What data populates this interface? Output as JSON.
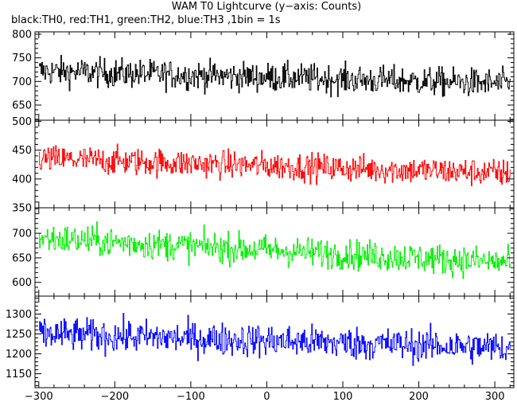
{
  "title": "WAM T0 Lightcurve (y−axis: Counts)",
  "subtitle": "black:TH0, red:TH1, green:TH2, blue:TH3 ,1bin = 1s",
  "chart_data": {
    "type": "line",
    "title": "WAM T0 Lightcurve (y−axis: Counts)",
    "subtitle": "black:TH0, red:TH1, green:TH2, blue:TH3 ,1bin = 1s",
    "ylabel": "Counts",
    "xlim": [
      -305,
      325
    ],
    "x_ticks": [
      -300,
      -200,
      -100,
      0,
      100,
      200,
      300
    ],
    "x_tick_labels": [
      "−300",
      "−200",
      "−100",
      "0",
      "100",
      "200",
      "300"
    ],
    "bin_width_s": 1,
    "grid": false,
    "panels": [
      {
        "name": "TH0",
        "color": "#000000",
        "ylim": [
          618,
          805
        ],
        "y_ticks": [
          650,
          700,
          750,
          800
        ],
        "approx_mean_start": 722,
        "approx_mean_end": 695,
        "approx_noise_halfwidth": 28
      },
      {
        "name": "TH1",
        "color": "#ff0000",
        "ylim": [
          350,
          502
        ],
        "y_ticks": [
          350,
          400,
          450,
          500
        ],
        "approx_mean_start": 435,
        "approx_mean_end": 410,
        "approx_noise_halfwidth": 22
      },
      {
        "name": "TH2",
        "color": "#00ee00",
        "ylim": [
          572,
          752
        ],
        "y_ticks": [
          600,
          650,
          700
        ],
        "approx_mean_start": 690,
        "approx_mean_end": 640,
        "approx_noise_halfwidth": 28
      },
      {
        "name": "TH3",
        "color": "#0000ff",
        "ylim": [
          1115,
          1345
        ],
        "y_ticks": [
          1150,
          1200,
          1250,
          1300
        ],
        "approx_mean_start": 1250,
        "approx_mean_end": 1215,
        "approx_noise_halfwidth": 38
      }
    ]
  }
}
